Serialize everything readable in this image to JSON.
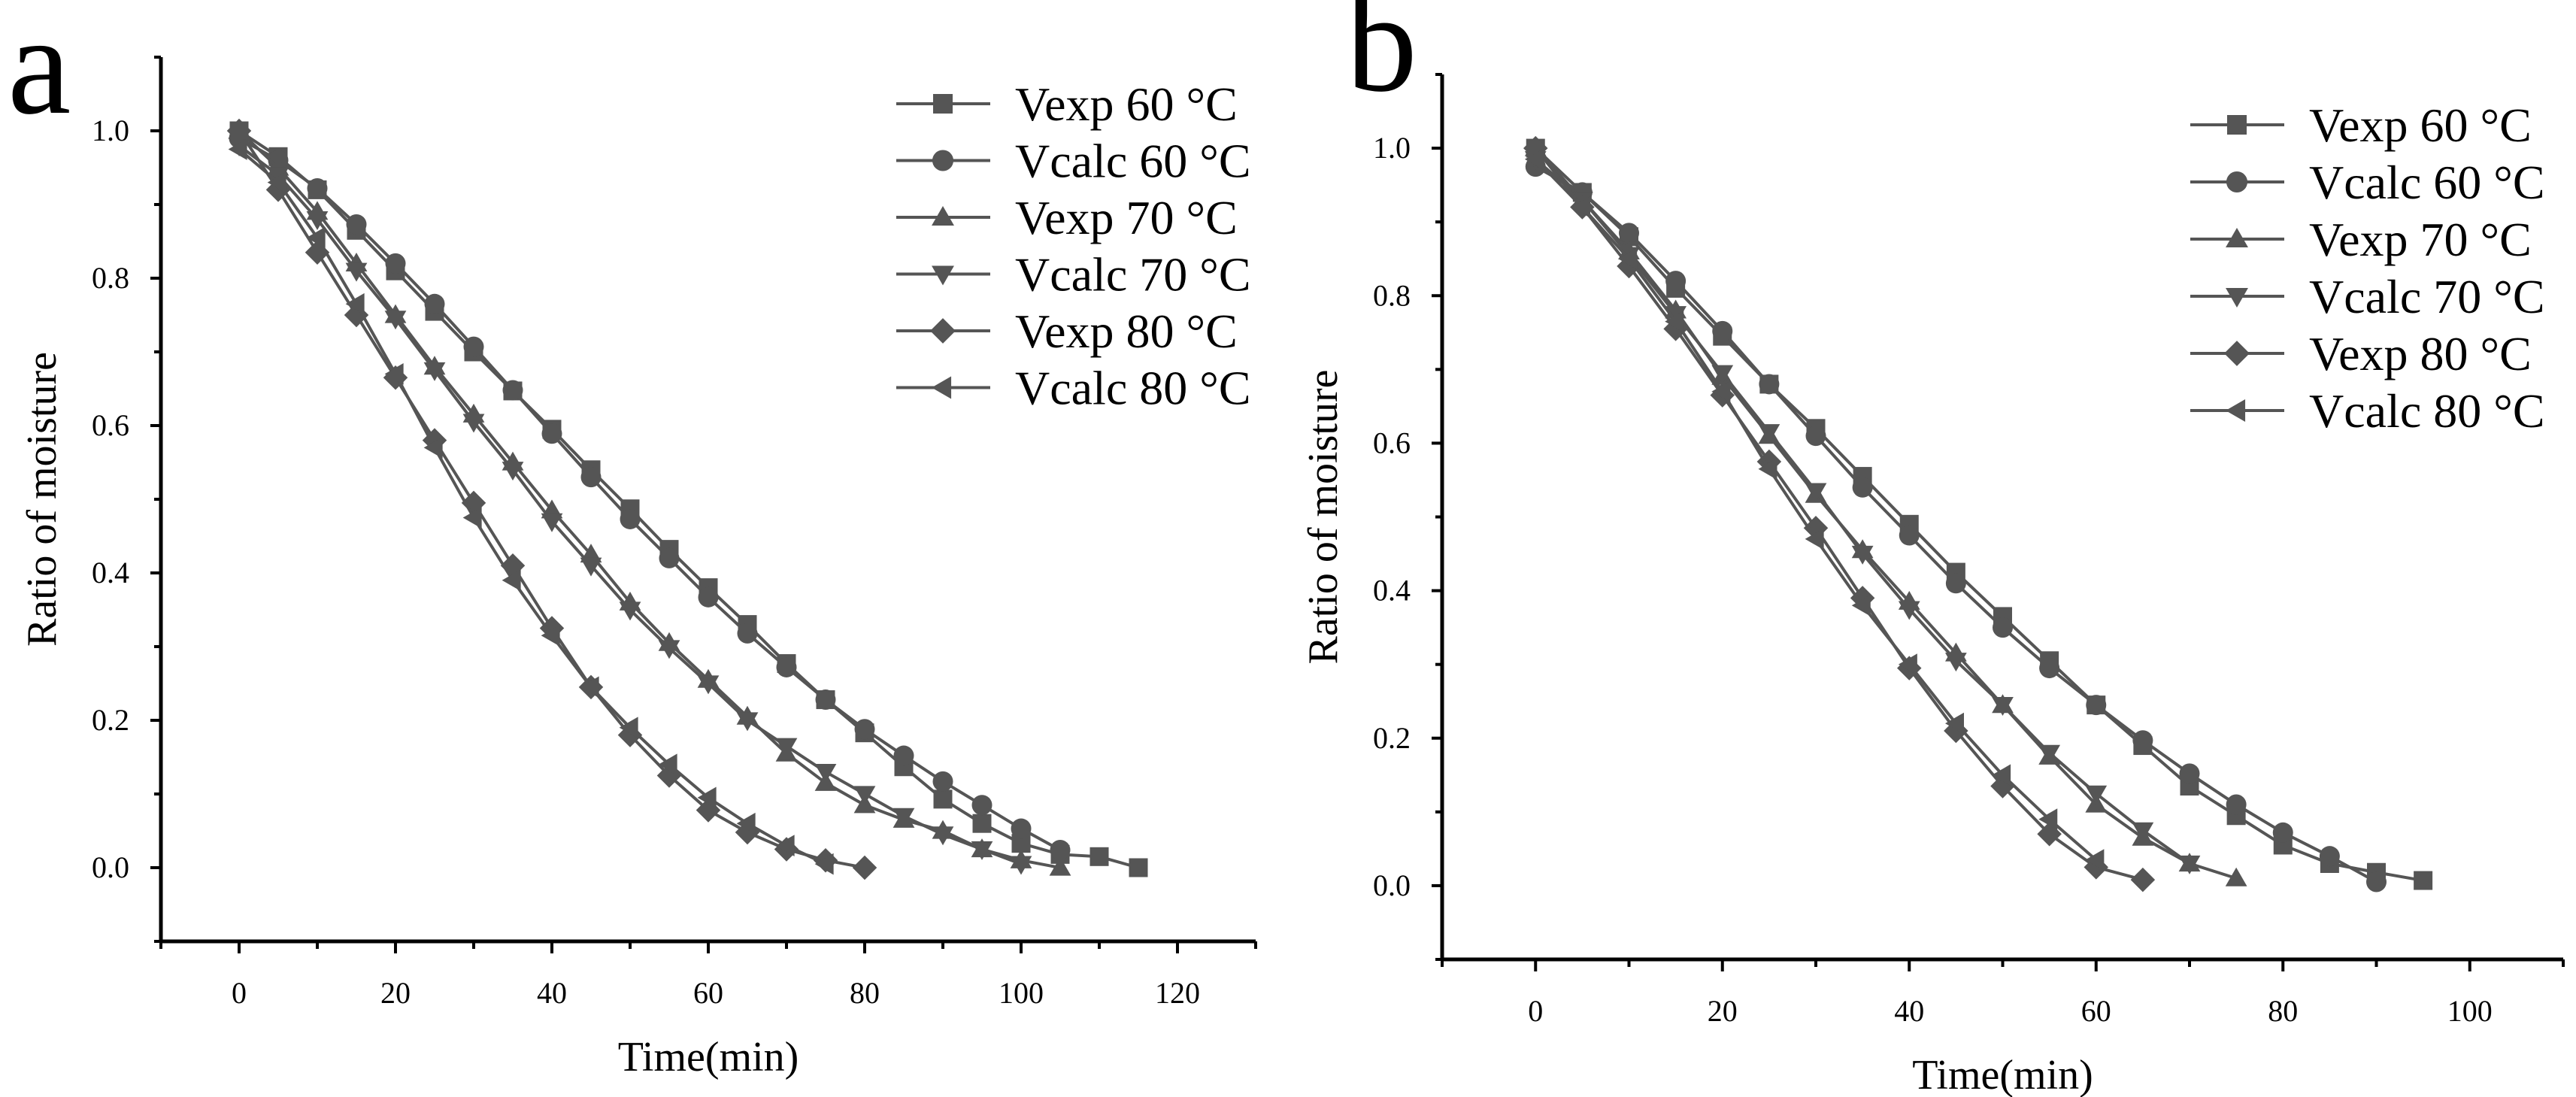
{
  "colors": {
    "series": "#555555",
    "axis": "#000000"
  },
  "chart_data": [
    {
      "type": "line",
      "panel_label": "a",
      "xlabel": "Time(min)",
      "ylabel": "Ratio of moisture",
      "xlim": [
        -10,
        130
      ],
      "ylim": [
        -0.1,
        1.1
      ],
      "xticks": [
        "0",
        "20",
        "40",
        "60",
        "80",
        "100",
        "120"
      ],
      "xtick_values": [
        0,
        20,
        40,
        60,
        80,
        100,
        120
      ],
      "yticks": [
        "0.0",
        "0.2",
        "0.4",
        "0.6",
        "0.8",
        "1.0"
      ],
      "ytick_values": [
        0,
        0.2,
        0.4,
        0.6,
        0.8,
        1.0
      ],
      "legend_position": "top-right",
      "series": [
        {
          "name": "Vexp 60 °C",
          "marker": "square",
          "x0": 0,
          "step": 5,
          "values": [
            1.0,
            0.965,
            0.92,
            0.865,
            0.81,
            0.755,
            0.7,
            0.647,
            0.595,
            0.54,
            0.487,
            0.432,
            0.38,
            0.33,
            0.277,
            0.228,
            0.183,
            0.137,
            0.093,
            0.06,
            0.033,
            0.018,
            0.015,
            0.0
          ]
        },
        {
          "name": "Vcalc 60 °C",
          "marker": "circle",
          "x0": 0,
          "step": 5,
          "values": [
            0.99,
            0.96,
            0.922,
            0.873,
            0.82,
            0.765,
            0.707,
            0.648,
            0.589,
            0.53,
            0.473,
            0.42,
            0.367,
            0.318,
            0.272,
            0.228,
            0.188,
            0.152,
            0.117,
            0.085,
            0.053,
            0.024
          ]
        },
        {
          "name": "Vexp 70 °C",
          "marker": "triangle-up",
          "x0": 0,
          "step": 5,
          "values": [
            1.0,
            0.95,
            0.89,
            0.82,
            0.75,
            0.68,
            0.615,
            0.55,
            0.485,
            0.425,
            0.36,
            0.305,
            0.255,
            0.205,
            0.155,
            0.115,
            0.085,
            0.065,
            0.05,
            0.025,
            0.01,
            0.0
          ]
        },
        {
          "name": "Vcalc 70 °C",
          "marker": "triangle-down",
          "x0": 0,
          "step": 5,
          "values": [
            0.98,
            0.94,
            0.88,
            0.81,
            0.745,
            0.675,
            0.605,
            0.54,
            0.47,
            0.41,
            0.35,
            0.298,
            0.25,
            0.2,
            0.165,
            0.13,
            0.1,
            0.07,
            0.045,
            0.025,
            0.005
          ]
        },
        {
          "name": "Vexp 80 °C",
          "marker": "diamond",
          "x0": 0,
          "step": 5,
          "values": [
            1.0,
            0.92,
            0.835,
            0.75,
            0.665,
            0.58,
            0.495,
            0.41,
            0.325,
            0.245,
            0.18,
            0.125,
            0.078,
            0.048,
            0.025,
            0.01,
            0.0
          ]
        },
        {
          "name": "Vcalc 80 °C",
          "marker": "triangle-left",
          "x0": 0,
          "step": 5,
          "values": [
            0.975,
            0.93,
            0.855,
            0.765,
            0.67,
            0.57,
            0.475,
            0.39,
            0.315,
            0.245,
            0.19,
            0.14,
            0.095,
            0.06,
            0.03,
            0.005
          ]
        }
      ]
    },
    {
      "type": "line",
      "panel_label": "b",
      "xlabel": "Time(min)",
      "ylabel": "Ratio of moisture",
      "xlim": [
        -10,
        110
      ],
      "ylim": [
        -0.1,
        1.1
      ],
      "xticks": [
        "0",
        "20",
        "40",
        "60",
        "80",
        "100"
      ],
      "xtick_values": [
        0,
        20,
        40,
        60,
        80,
        100
      ],
      "yticks": [
        "0.0",
        "0.2",
        "0.4",
        "0.6",
        "0.8",
        "1.0"
      ],
      "ytick_values": [
        0,
        0.2,
        0.4,
        0.6,
        0.8,
        1.0
      ],
      "legend_position": "top-right",
      "series": [
        {
          "name": "Vexp 60 °C",
          "marker": "square",
          "x0": 0,
          "step": 5,
          "values": [
            1.0,
            0.94,
            0.88,
            0.81,
            0.745,
            0.68,
            0.62,
            0.555,
            0.49,
            0.425,
            0.365,
            0.305,
            0.245,
            0.19,
            0.135,
            0.095,
            0.055,
            0.03,
            0.018,
            0.007
          ]
        },
        {
          "name": "Vcalc 60 °C",
          "marker": "circle",
          "x0": 0,
          "step": 5,
          "values": [
            0.975,
            0.94,
            0.885,
            0.82,
            0.752,
            0.68,
            0.61,
            0.54,
            0.475,
            0.41,
            0.35,
            0.295,
            0.245,
            0.197,
            0.152,
            0.11,
            0.072,
            0.04,
            0.005
          ]
        },
        {
          "name": "Vexp 70 °C",
          "marker": "triangle-up",
          "x0": 0,
          "step": 5,
          "values": [
            1.0,
            0.93,
            0.86,
            0.78,
            0.69,
            0.61,
            0.53,
            0.455,
            0.385,
            0.315,
            0.245,
            0.175,
            0.11,
            0.065,
            0.03,
            0.01
          ]
        },
        {
          "name": "Vcalc 70 °C",
          "marker": "triangle-down",
          "x0": 0,
          "step": 5,
          "values": [
            0.985,
            0.93,
            0.855,
            0.775,
            0.695,
            0.615,
            0.535,
            0.45,
            0.375,
            0.305,
            0.245,
            0.18,
            0.125,
            0.075,
            0.03
          ]
        },
        {
          "name": "Vexp 80 °C",
          "marker": "diamond",
          "x0": 0,
          "step": 5,
          "values": [
            1.0,
            0.92,
            0.84,
            0.755,
            0.665,
            0.575,
            0.485,
            0.39,
            0.295,
            0.21,
            0.135,
            0.07,
            0.025,
            0.008
          ]
        },
        {
          "name": "Vcalc 80 °C",
          "marker": "triangle-left",
          "x0": 0,
          "step": 5,
          "values": [
            0.985,
            0.92,
            0.85,
            0.765,
            0.67,
            0.565,
            0.47,
            0.38,
            0.3,
            0.22,
            0.15,
            0.09,
            0.035
          ]
        }
      ]
    }
  ]
}
